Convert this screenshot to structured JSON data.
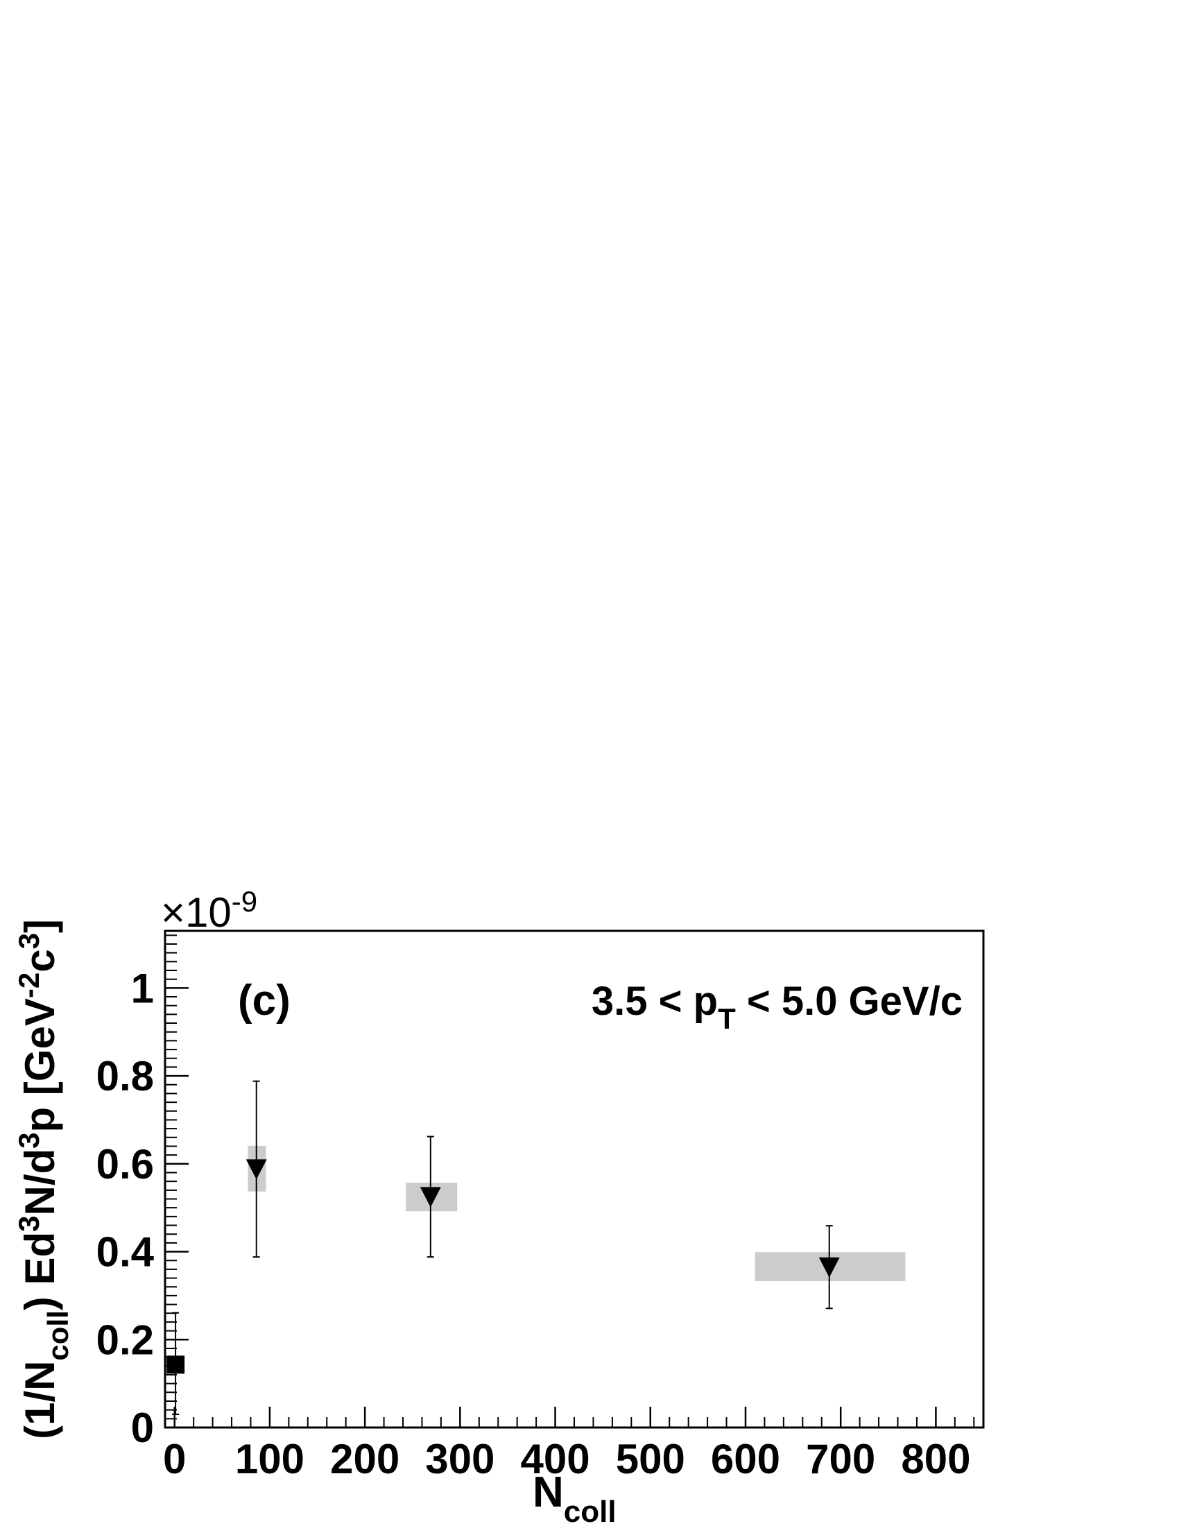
{
  "chart_data": {
    "type": "scatter",
    "panel_label": "(c)",
    "annotation": {
      "prefix": "3.5 < p",
      "sub": "T",
      "suffix": " < 5.0 GeV/c"
    },
    "xlabel": {
      "main": "N",
      "sub": "coll"
    },
    "ylabel": {
      "p1": "(1/N",
      "p1_sub": "coll",
      "p2": ") Ed",
      "p2_sup": "3",
      "p3": "N/d",
      "p3_sup": "3",
      "p4": "p  [GeV",
      "p4_sup": "-2",
      "p5": "c",
      "p5_sup": "3",
      "p6": "]"
    },
    "multiplier": {
      "prefix": "×10",
      "exp": "-9"
    },
    "xlim": [
      -10,
      850
    ],
    "ylim": [
      0,
      1.13
    ],
    "x_major_ticks": [
      0,
      100,
      200,
      300,
      400,
      500,
      600,
      700,
      800
    ],
    "x_tick_labels": [
      "0",
      "100",
      "200",
      "300",
      "400",
      "500",
      "600",
      "700",
      "800"
    ],
    "y_major_ticks": [
      0,
      0.2,
      0.4,
      0.6,
      0.8,
      1.0
    ],
    "y_tick_labels": [
      "0",
      "0.2",
      "0.4",
      "0.6",
      "0.8",
      "1"
    ],
    "series": [
      {
        "marker": "square",
        "color": "#000000",
        "points": [
          {
            "x": 1,
            "y": 0.143,
            "yerr_low": 0.113,
            "yerr_high": 0.118
          }
        ]
      },
      {
        "marker": "triangle-down",
        "color": "#000000",
        "syst_color": "#cccccc",
        "points": [
          {
            "x": 86,
            "y": 0.588,
            "yerr_low": 0.2,
            "yerr_high": 0.2,
            "syst_x": [
              77,
              96
            ],
            "syst_y": [
              0.537,
              0.641
            ]
          },
          {
            "x": 269,
            "y": 0.525,
            "yerr_low": 0.137,
            "yerr_high": 0.137,
            "syst_x": [
              243,
              297
            ],
            "syst_y": [
              0.492,
              0.557
            ]
          },
          {
            "x": 688,
            "y": 0.365,
            "yerr_low": 0.094,
            "yerr_high": 0.094,
            "syst_x": [
              610,
              768
            ],
            "syst_y": [
              0.333,
              0.399
            ]
          }
        ]
      }
    ]
  }
}
